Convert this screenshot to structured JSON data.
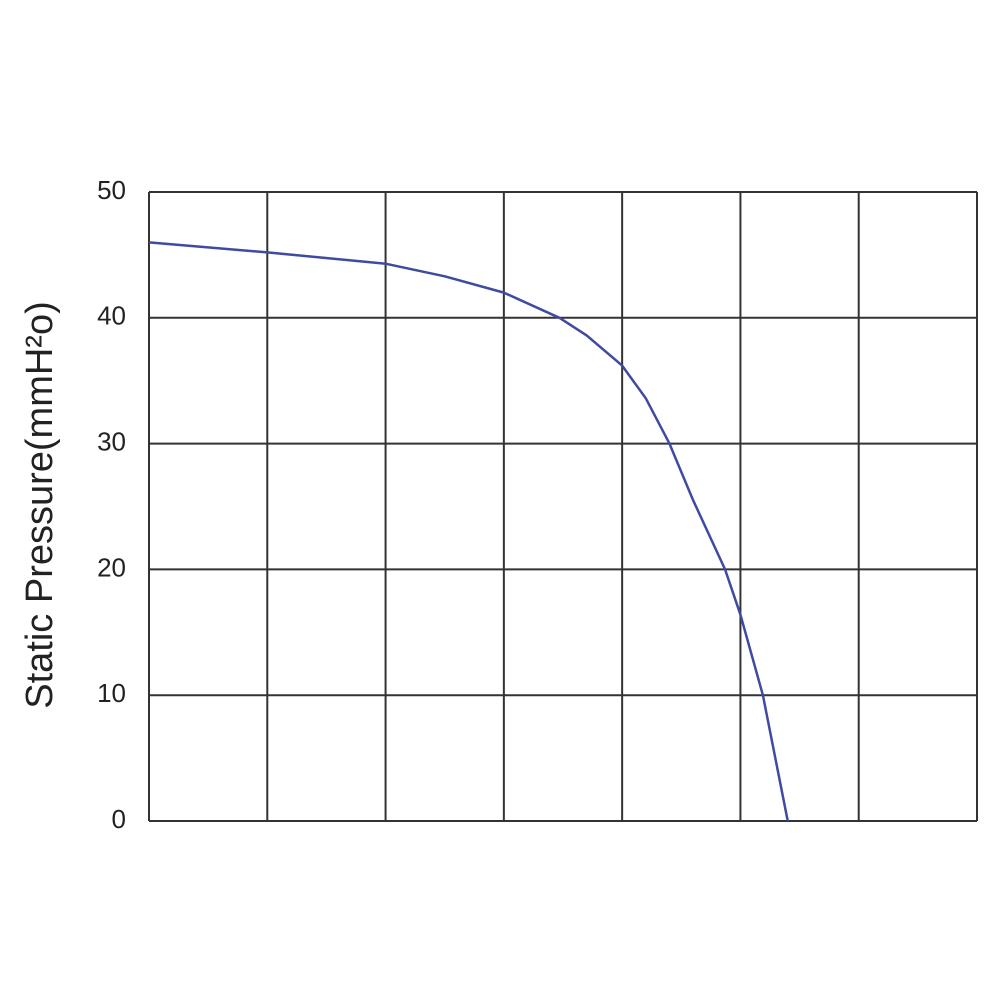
{
  "chart_data": {
    "type": "line",
    "y_label": "Static Pressure(mmH²o)",
    "x": [
      0,
      1,
      2,
      2.5,
      3,
      3.47,
      3.7,
      4,
      4.2,
      4.4,
      4.6,
      4.87,
      5,
      5.19,
      5.4
    ],
    "values": [
      46,
      45.2,
      44.3,
      43.3,
      42,
      40,
      38.6,
      36.2,
      33.6,
      30,
      25.5,
      20,
      16.4,
      10,
      0
    ],
    "color": "#3f4aa0",
    "xlim": [
      0,
      7
    ],
    "xticks": [
      0,
      1,
      2,
      3,
      4,
      5,
      6,
      7
    ],
    "ylim": [
      0,
      50
    ],
    "yticks": [
      0,
      10,
      20,
      30,
      40,
      50
    ],
    "grid": true
  }
}
